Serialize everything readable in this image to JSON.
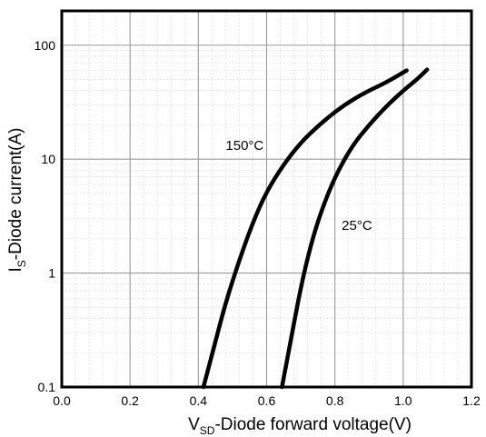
{
  "chart_data": {
    "type": "line",
    "xlabel_main": "V",
    "xlabel_sub": "SD",
    "xlabel_rest": "-Diode forward voltage(V)",
    "ylabel_main": "I",
    "ylabel_sub": "S",
    "ylabel_rest": "-Diode current(A)",
    "xlim": [
      0.0,
      1.2
    ],
    "ylim": [
      0.1,
      200
    ],
    "yscale": "log",
    "grid": true,
    "x_ticks": [
      "0.0",
      "0.2",
      "0.4",
      "0.6",
      "0.8",
      "1.0",
      "1.2"
    ],
    "y_ticks": [
      "0.1",
      "1",
      "10",
      "100"
    ],
    "series": [
      {
        "name": "150°C",
        "color": "#000000",
        "points": [
          [
            0.415,
            0.1
          ],
          [
            0.45,
            0.25
          ],
          [
            0.48,
            0.55
          ],
          [
            0.52,
            1.3
          ],
          [
            0.56,
            2.8
          ],
          [
            0.6,
            5.2
          ],
          [
            0.65,
            9.0
          ],
          [
            0.7,
            14.0
          ],
          [
            0.75,
            19.5
          ],
          [
            0.8,
            26.0
          ],
          [
            0.85,
            33.0
          ],
          [
            0.9,
            40.0
          ],
          [
            0.95,
            47.0
          ],
          [
            1.01,
            60.0
          ]
        ]
      },
      {
        "name": "25°C",
        "color": "#000000",
        "points": [
          [
            0.645,
            0.1
          ],
          [
            0.67,
            0.25
          ],
          [
            0.7,
            0.75
          ],
          [
            0.73,
            1.8
          ],
          [
            0.76,
            3.5
          ],
          [
            0.8,
            7.0
          ],
          [
            0.85,
            13.0
          ],
          [
            0.9,
            20.0
          ],
          [
            0.95,
            29.0
          ],
          [
            1.0,
            40.0
          ],
          [
            1.04,
            50.0
          ],
          [
            1.07,
            61.0
          ]
        ]
      }
    ]
  }
}
